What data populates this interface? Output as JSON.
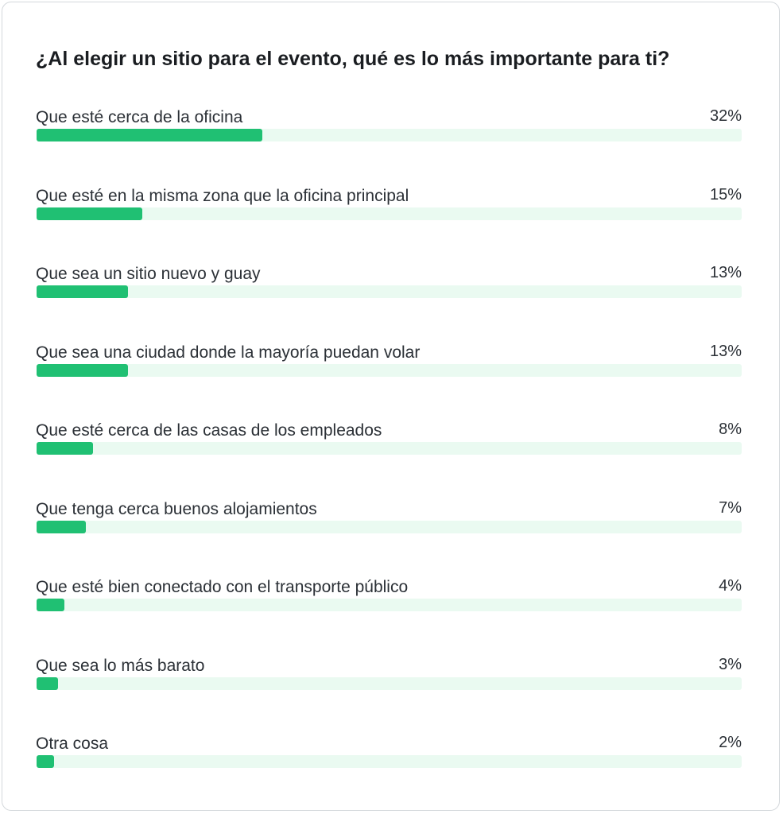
{
  "chart_data": {
    "type": "bar",
    "orientation": "horizontal",
    "title": "¿Al elegir un sitio para el evento, qué es lo más importante para ti?",
    "categories": [
      "Que esté cerca de la oficina",
      "Que esté en la misma zona que la oficina principal",
      "Que sea un sitio nuevo y guay",
      "Que sea una ciudad donde la mayoría puedan volar",
      "Que esté cerca de las casas de los empleados",
      "Que tenga cerca buenos alojamientos",
      "Que esté bien conectado con el transporte público",
      "Que sea lo más barato",
      "Otra cosa"
    ],
    "values": [
      32,
      15,
      13,
      13,
      8,
      7,
      4,
      3,
      2
    ],
    "value_labels": [
      "32%",
      "15%",
      "13%",
      "13%",
      "8%",
      "7%",
      "4%",
      "3%",
      "2%"
    ],
    "unit": "%",
    "xlim": [
      0,
      100
    ],
    "colors": {
      "bar_fill": "#20c073",
      "bar_track": "#eafaf1",
      "text": "#2b3036",
      "title": "#1a1d21",
      "border": "#d4d8dc"
    }
  }
}
